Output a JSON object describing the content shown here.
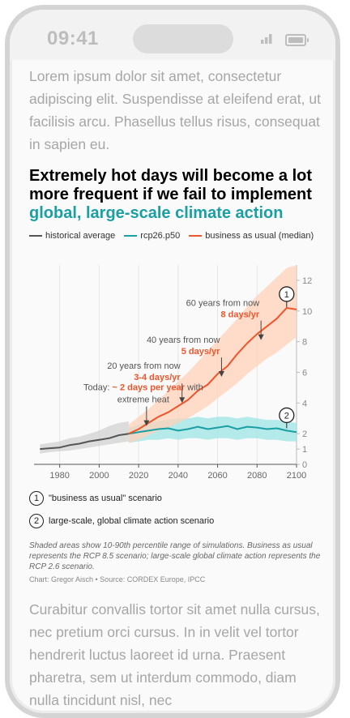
{
  "status": {
    "time": "09:41"
  },
  "intro": "Lorem ipsum dolor sit amet, consectetur adipiscing elit. Suspendisse at eleifend erat, ut facilisis arcu. Phasellus tellus risus, consequat in sapien eu.",
  "headline": {
    "line1": "Extremely hot days will become a lot more frequent if we fail to implement",
    "line2": "global, large-scale climate action"
  },
  "legend": [
    {
      "label": "historical average",
      "color": "#555555"
    },
    {
      "label": "rcp26.p50",
      "color": "#1a9fa3"
    },
    {
      "label": "business as usual (median)",
      "color": "#f0542a"
    }
  ],
  "chart_data": {
    "type": "line",
    "xlim": [
      1967,
      2100
    ],
    "ylim": [
      0,
      13
    ],
    "x_ticks": [
      1980,
      2000,
      2020,
      2040,
      2060,
      2080,
      2100
    ],
    "y_ticks": [
      0,
      1,
      2,
      4,
      6,
      8,
      10,
      12
    ],
    "series": [
      {
        "name": "historical average",
        "color": "#555555",
        "x": [
          1970,
          1975,
          1980,
          1985,
          1990,
          1995,
          2000,
          2005,
          2010,
          2015
        ],
        "y": [
          1.0,
          1.05,
          1.1,
          1.25,
          1.35,
          1.5,
          1.6,
          1.7,
          1.9,
          2.0
        ],
        "band_low": [
          0.7,
          0.8,
          0.85,
          0.9,
          1.0,
          1.1,
          1.2,
          1.3,
          1.4,
          1.5
        ],
        "band_high": [
          1.3,
          1.4,
          1.5,
          1.7,
          1.8,
          2.0,
          2.2,
          2.5,
          2.7,
          2.8
        ]
      },
      {
        "name": "rcp26.p50",
        "color": "#1a9fa3",
        "x": [
          2015,
          2020,
          2025,
          2030,
          2035,
          2040,
          2045,
          2050,
          2055,
          2060,
          2065,
          2070,
          2075,
          2080,
          2085,
          2090,
          2095,
          2100
        ],
        "y": [
          2.0,
          2.1,
          2.2,
          2.3,
          2.35,
          2.2,
          2.3,
          2.45,
          2.3,
          2.4,
          2.5,
          2.3,
          2.45,
          2.4,
          2.3,
          2.35,
          2.2,
          2.1
        ],
        "band_low": [
          1.4,
          1.5,
          1.6,
          1.6,
          1.7,
          1.6,
          1.7,
          1.7,
          1.6,
          1.7,
          1.7,
          1.6,
          1.7,
          1.7,
          1.6,
          1.6,
          1.5,
          1.5
        ],
        "band_high": [
          2.4,
          2.6,
          2.7,
          2.8,
          2.9,
          3.0,
          3.0,
          3.1,
          3.0,
          3.1,
          3.1,
          3.0,
          3.1,
          3.0,
          2.9,
          2.9,
          2.8,
          2.7
        ]
      },
      {
        "name": "business as usual (median)",
        "color": "#f0542a",
        "x": [
          2015,
          2020,
          2025,
          2030,
          2035,
          2040,
          2045,
          2050,
          2055,
          2060,
          2065,
          2070,
          2075,
          2080,
          2085,
          2090,
          2095,
          2100
        ],
        "y": [
          2.0,
          2.3,
          2.7,
          3.1,
          3.4,
          3.8,
          4.2,
          4.8,
          5.2,
          5.9,
          6.4,
          7.2,
          7.9,
          8.5,
          9.0,
          9.5,
          10.2,
          10.1
        ],
        "band_low": [
          1.4,
          1.6,
          1.9,
          2.2,
          2.4,
          2.7,
          3.0,
          3.4,
          3.8,
          4.3,
          4.8,
          5.3,
          5.9,
          6.4,
          6.9,
          7.3,
          7.8,
          8.3
        ],
        "band_high": [
          2.6,
          3.1,
          3.6,
          4.2,
          4.8,
          5.4,
          6.0,
          6.7,
          7.4,
          8.1,
          8.8,
          9.5,
          10.3,
          11.0,
          11.6,
          12.2,
          12.8,
          13.0
        ]
      }
    ],
    "annotations": [
      {
        "pre": "Today: ",
        "hl": "~ 2 days per year",
        "post": " with",
        "line2": "extreme heat",
        "x": 2024,
        "y": 2.4
      },
      {
        "text": "20 years from now",
        "hl": "3-4 days/yr",
        "x": 2042,
        "y": 3.9
      },
      {
        "text": "40 years from now",
        "hl": "5 days/yr",
        "x": 2062,
        "y": 5.6
      },
      {
        "text": "60 years from now",
        "hl": "8 days/yr",
        "x": 2082,
        "y": 8.0
      }
    ],
    "markers": [
      {
        "label": "1",
        "x": 2095,
        "y": 11.1
      },
      {
        "label": "2",
        "x": 2095,
        "y": 3.2
      }
    ]
  },
  "notes": [
    {
      "num": "1",
      "text": "\"business as usual\" scenario"
    },
    {
      "num": "2",
      "text": "large-scale, global climate action scenario"
    }
  ],
  "caption": "Shaded areas show 10-90th percentile range of simulations. Business as usual represents the RCP 8.5 scenario; large-scale global climate action represents the RCP 2.6 scenario.",
  "credit": "Chart: Gregor Aisch • Source: CORDEX Europe, IPCC",
  "outro": "Curabitur convallis tortor sit amet nulla cursus, nec pretium orci cursus. In in velit vel tortor hendrerit luctus laoreet id urna. Praesent pharetra, sem ut interdum commodo, diam nulla tincidunt nisl, nec"
}
